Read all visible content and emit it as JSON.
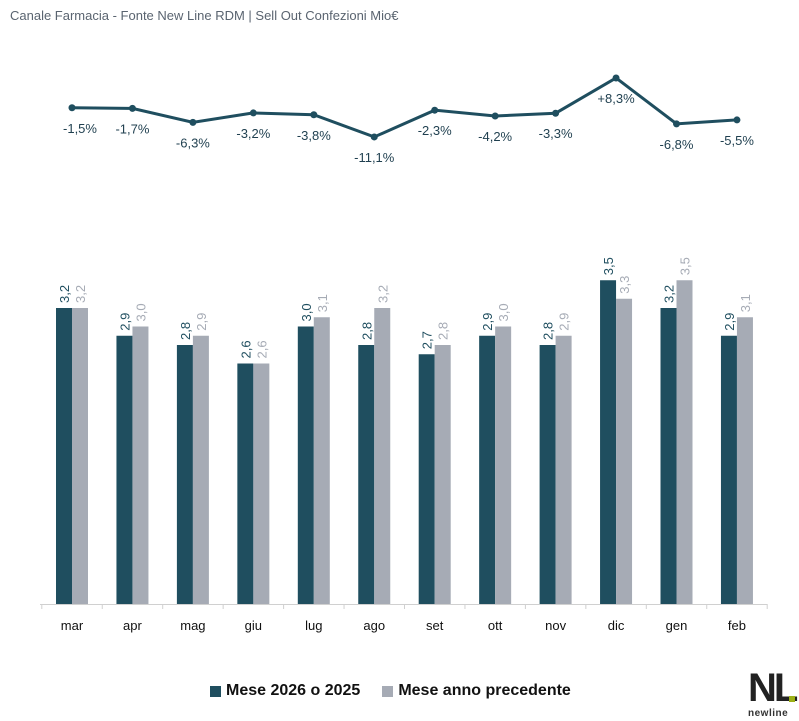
{
  "title": "Canale Farmacia - Fonte New Line RDM | Sell Out Confezioni Mio€",
  "chart_data": [
    {
      "type": "line",
      "categories": [
        "mar",
        "apr",
        "mag",
        "giu",
        "lug",
        "ago",
        "set",
        "ott",
        "nov",
        "dic",
        "gen",
        "feb"
      ],
      "values": [
        -1.5,
        -1.7,
        -6.3,
        -3.2,
        -3.8,
        -11.1,
        -2.3,
        -4.2,
        -3.3,
        8.3,
        -6.8,
        -5.5
      ],
      "labels": [
        "-1,5%",
        "-1,7%",
        "-6,3%",
        "-3,2%",
        "-3,8%",
        "-11,1%",
        "-2,3%",
        "-4,2%",
        "-3,3%",
        "+8,3%",
        "-6,8%",
        "-5,5%"
      ],
      "color": "#1f4e5f"
    },
    {
      "type": "bar",
      "categories": [
        "mar",
        "apr",
        "mag",
        "giu",
        "lug",
        "ago",
        "set",
        "ott",
        "nov",
        "dic",
        "gen",
        "feb"
      ],
      "series": [
        {
          "name": "Mese 2026 o 2025",
          "values": [
            3.2,
            2.9,
            2.8,
            2.6,
            3.0,
            2.8,
            2.7,
            2.9,
            2.8,
            3.5,
            3.2,
            2.9
          ],
          "labels": [
            "3,2",
            "2,9",
            "2,8",
            "2,6",
            "3,0",
            "2,8",
            "2,7",
            "2,9",
            "2,8",
            "3,5",
            "3,2",
            "2,9"
          ],
          "color": "#1f4e5f"
        },
        {
          "name": "Mese anno precedente",
          "values": [
            3.2,
            3.0,
            2.9,
            2.6,
            3.1,
            3.2,
            2.8,
            3.0,
            2.9,
            3.3,
            3.5,
            3.1
          ],
          "labels": [
            "3,2",
            "3,0",
            "2,9",
            "2,6",
            "3,1",
            "3,2",
            "2,8",
            "3,0",
            "2,9",
            "3,3",
            "3,5",
            "3,1"
          ],
          "color": "#a6abb5"
        }
      ],
      "legend": "bottom"
    }
  ],
  "logo": {
    "text": "NL",
    "subtext": "newline"
  }
}
